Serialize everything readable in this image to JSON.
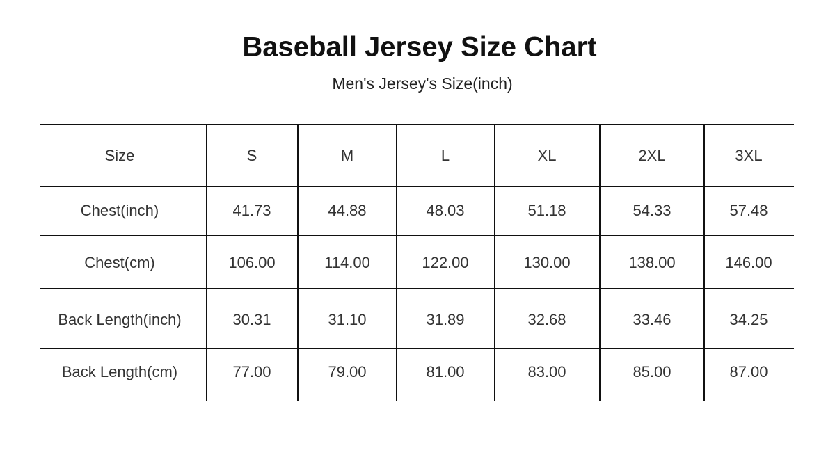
{
  "header": {
    "title": "Baseball Jersey Size Chart",
    "subtitle": "Men's Jersey's Size(inch)"
  },
  "table": {
    "columns": [
      "Size",
      "S",
      "M",
      "L",
      "XL",
      "2XL",
      "3XL"
    ],
    "rows": [
      [
        "Chest(inch)",
        "41.73",
        "44.88",
        "48.03",
        "51.18",
        "54.33",
        "57.48"
      ],
      [
        "Chest(cm)",
        "106.00",
        "114.00",
        "122.00",
        "130.00",
        "138.00",
        "146.00"
      ],
      [
        "Back Length(inch)",
        "30.31",
        "31.10",
        "31.89",
        "32.68",
        "33.46",
        "34.25"
      ],
      [
        "Back Length(cm)",
        "77.00",
        "79.00",
        "81.00",
        "83.00",
        "85.00",
        "87.00"
      ]
    ]
  }
}
